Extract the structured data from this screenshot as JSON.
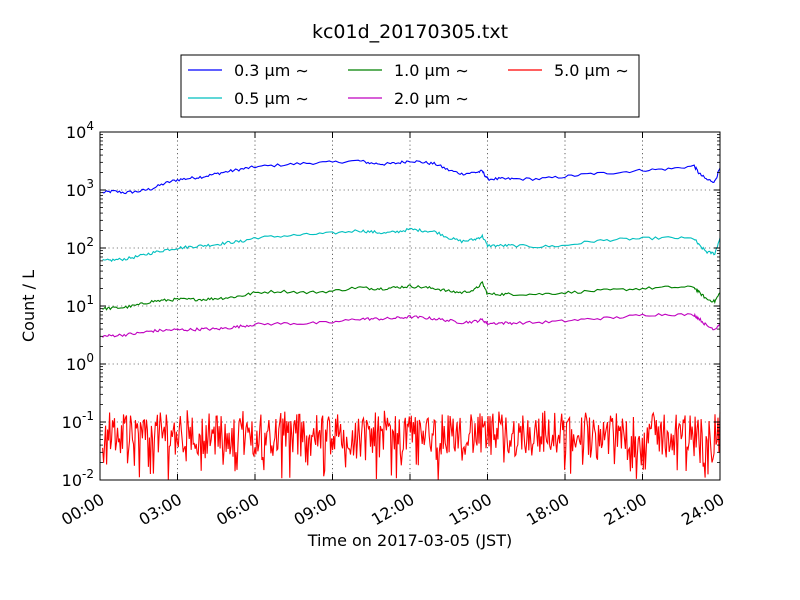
{
  "chart_data": {
    "type": "line",
    "title": "kc01d_20170305.txt",
    "xlabel": "Time on 2017-03-05 (JST)",
    "ylabel": "Count / L",
    "y_scale": "log",
    "xlim": [
      0,
      24
    ],
    "ylim": [
      0.01,
      10000
    ],
    "grid": true,
    "legend_position": "top-center",
    "x_ticks": [
      {
        "value": 0,
        "label": "00:00"
      },
      {
        "value": 3,
        "label": "03:00"
      },
      {
        "value": 6,
        "label": "06:00"
      },
      {
        "value": 9,
        "label": "09:00"
      },
      {
        "value": 12,
        "label": "12:00"
      },
      {
        "value": 15,
        "label": "15:00"
      },
      {
        "value": 18,
        "label": "18:00"
      },
      {
        "value": 21,
        "label": "21:00"
      },
      {
        "value": 24,
        "label": "24:00"
      }
    ],
    "y_ticks": [
      {
        "value": 0.01,
        "base": "10",
        "exp": "-2"
      },
      {
        "value": 0.1,
        "base": "10",
        "exp": "-1"
      },
      {
        "value": 1,
        "base": "10",
        "exp": "0"
      },
      {
        "value": 10,
        "base": "10",
        "exp": "1"
      },
      {
        "value": 100,
        "base": "10",
        "exp": "2"
      },
      {
        "value": 1000,
        "base": "10",
        "exp": "3"
      },
      {
        "value": 10000,
        "base": "10",
        "exp": "4"
      }
    ],
    "series": [
      {
        "name": "0.3 µm ∼",
        "color": "#0000ff",
        "x": [
          0.1,
          0.5,
          1.0,
          1.5,
          2.0,
          2.5,
          3.0,
          3.5,
          4.0,
          4.5,
          5.0,
          5.5,
          6.0,
          7.0,
          8.0,
          9.0,
          10.0,
          10.5,
          11.0,
          11.5,
          12.0,
          12.5,
          13.0,
          13.5,
          14.0,
          14.5,
          14.8,
          15.0,
          15.5,
          16.0,
          17.0,
          18.0,
          19.0,
          20.0,
          21.0,
          22.0,
          23.0,
          23.2,
          23.5,
          23.8,
          24.0
        ],
        "y": [
          900,
          950,
          900,
          950,
          1050,
          1300,
          1500,
          1600,
          1700,
          1900,
          2100,
          2300,
          2500,
          2700,
          2900,
          3000,
          3200,
          2900,
          2800,
          2900,
          3200,
          3000,
          2800,
          2200,
          1900,
          2000,
          2100,
          1550,
          1550,
          1550,
          1550,
          1700,
          1900,
          2000,
          2200,
          2300,
          2600,
          1900,
          1500,
          1400,
          2400
        ]
      },
      {
        "name": "0.5 µm ∼",
        "color": "#00bfbf",
        "x": [
          0.1,
          0.5,
          1.0,
          1.5,
          2.0,
          2.5,
          3.0,
          3.5,
          4.0,
          4.5,
          5.0,
          5.5,
          6.0,
          7.0,
          8.0,
          9.0,
          10.0,
          10.5,
          11.0,
          11.5,
          12.0,
          12.5,
          13.0,
          13.5,
          14.0,
          14.5,
          14.8,
          15.0,
          15.5,
          16.0,
          17.0,
          18.0,
          19.0,
          20.0,
          21.0,
          22.0,
          23.0,
          23.2,
          23.5,
          23.8,
          24.0
        ],
        "y": [
          60,
          62,
          65,
          72,
          82,
          92,
          100,
          105,
          110,
          115,
          125,
          130,
          150,
          160,
          170,
          180,
          200,
          190,
          180,
          190,
          210,
          200,
          190,
          150,
          130,
          140,
          160,
          110,
          110,
          110,
          105,
          110,
          130,
          140,
          145,
          150,
          145,
          110,
          85,
          80,
          150
        ]
      },
      {
        "name": "1.0 µm ∼",
        "color": "#008000",
        "x": [
          0.1,
          0.5,
          1.0,
          1.5,
          2.0,
          2.5,
          3.0,
          3.5,
          4.0,
          4.5,
          5.0,
          5.5,
          6.0,
          7.0,
          8.0,
          9.0,
          10.0,
          10.5,
          11.0,
          11.5,
          12.0,
          12.5,
          13.0,
          13.5,
          14.0,
          14.5,
          14.8,
          15.0,
          15.5,
          16.0,
          17.0,
          18.0,
          19.0,
          20.0,
          21.0,
          22.0,
          23.0,
          23.2,
          23.5,
          23.8,
          24.0
        ],
        "y": [
          9,
          9.2,
          9.5,
          10.5,
          12,
          12.5,
          13,
          13,
          13,
          13.5,
          14,
          15,
          17,
          18,
          17,
          18,
          21,
          20,
          20,
          21,
          22,
          21,
          20,
          18,
          17,
          19,
          25,
          16,
          16,
          16,
          16,
          17,
          18,
          19,
          20,
          21,
          21,
          17,
          13,
          12,
          17
        ]
      },
      {
        "name": "2.0 µm ∼",
        "color": "#bf00bf",
        "x": [
          0.1,
          0.5,
          1.0,
          1.5,
          2.0,
          2.5,
          3.0,
          3.5,
          4.0,
          4.5,
          5.0,
          5.5,
          6.0,
          7.0,
          8.0,
          9.0,
          10.0,
          10.5,
          11.0,
          11.5,
          12.0,
          12.5,
          13.0,
          13.5,
          14.0,
          14.5,
          14.8,
          15.0,
          15.5,
          16.0,
          17.0,
          18.0,
          19.0,
          20.0,
          21.0,
          22.0,
          23.0,
          23.2,
          23.5,
          23.8,
          24.0
        ],
        "y": [
          3,
          3.1,
          3.2,
          3.4,
          3.7,
          3.8,
          3.9,
          3.9,
          4.0,
          4.0,
          4.2,
          4.5,
          4.8,
          5.0,
          5.0,
          5.2,
          6.0,
          6.0,
          6.0,
          6.2,
          6.5,
          6.3,
          6.0,
          5.6,
          5.2,
          5.4,
          5.8,
          5.0,
          5.1,
          5.1,
          5.2,
          5.5,
          6.0,
          6.3,
          7.0,
          7.2,
          7.0,
          6.0,
          4.5,
          4.0,
          5.0
        ]
      },
      {
        "name": "5.0 µm ∼",
        "color": "#ff0000",
        "x_start": 0.1,
        "x_end": 24.0,
        "noise": true,
        "y_median": 0.06,
        "y_min": 0.01,
        "y_max": 0.16
      }
    ]
  }
}
